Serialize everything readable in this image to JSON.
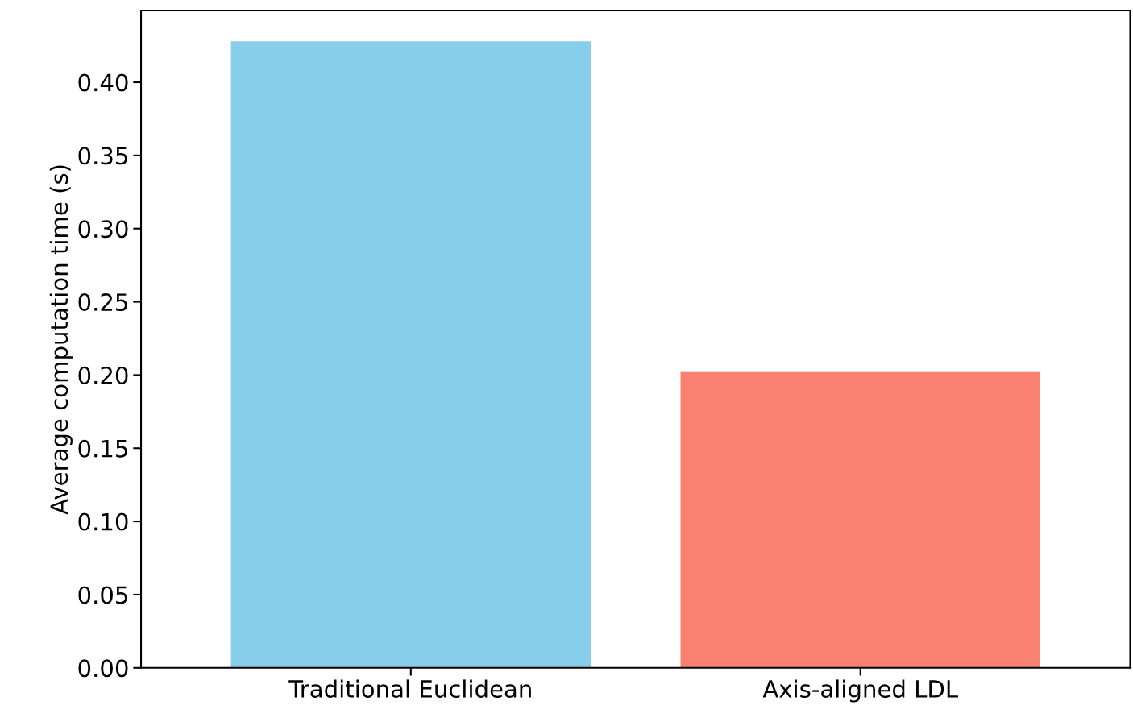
{
  "chart_data": {
    "type": "bar",
    "ylabel": "Average computation time (s)",
    "categories": [
      "Traditional Euclidean",
      "Axis-aligned LDL"
    ],
    "values": [
      0.428,
      0.202
    ],
    "colors": [
      "#87ceeb",
      "#fa8072"
    ],
    "ylim": [
      0,
      0.449
    ],
    "yticks": [
      {
        "value": 0,
        "label": "0.00"
      },
      0.05,
      {
        "value": 0.1,
        "label": "0.10"
      },
      0.15,
      {
        "value": 0.2,
        "label": "0.20"
      },
      0.25,
      {
        "value": 0.3,
        "label": "0.30"
      },
      0.35,
      {
        "value": 0.4,
        "label": "0.40"
      }
    ],
    "grid": false,
    "legend": false
  }
}
